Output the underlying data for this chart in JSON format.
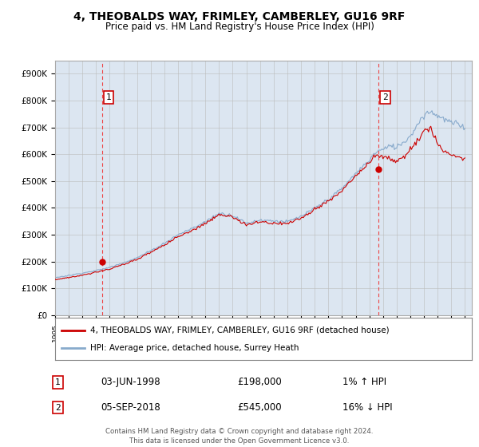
{
  "title": "4, THEOBALDS WAY, FRIMLEY, CAMBERLEY, GU16 9RF",
  "subtitle": "Price paid vs. HM Land Registry's House Price Index (HPI)",
  "plot_bg_color": "#dce6f1",
  "ylim": [
    0,
    950000
  ],
  "yticks": [
    0,
    100000,
    200000,
    300000,
    400000,
    500000,
    600000,
    700000,
    800000,
    900000
  ],
  "ytick_labels": [
    "£0",
    "£100K",
    "£200K",
    "£300K",
    "£400K",
    "£500K",
    "£600K",
    "£700K",
    "£800K",
    "£900K"
  ],
  "xmin": 1995.0,
  "xmax": 2025.5,
  "sale1_x": 1998.42,
  "sale1_y": 198000,
  "sale1_label": "1",
  "sale1_date": "03-JUN-1998",
  "sale1_price": "£198,000",
  "sale1_hpi": "1% ↑ HPI",
  "sale2_x": 2018.67,
  "sale2_y": 545000,
  "sale2_label": "2",
  "sale2_date": "05-SEP-2018",
  "sale2_price": "£545,000",
  "sale2_hpi": "16% ↓ HPI",
  "line1_color": "#cc0000",
  "line2_color": "#88aacc",
  "marker_color": "#cc0000",
  "vline_color": "#ee4444",
  "grid_color": "#bbbbbb",
  "legend1_label": "4, THEOBALDS WAY, FRIMLEY, CAMBERLEY, GU16 9RF (detached house)",
  "legend2_label": "HPI: Average price, detached house, Surrey Heath",
  "footer": "Contains HM Land Registry data © Crown copyright and database right 2024.\nThis data is licensed under the Open Government Licence v3.0."
}
